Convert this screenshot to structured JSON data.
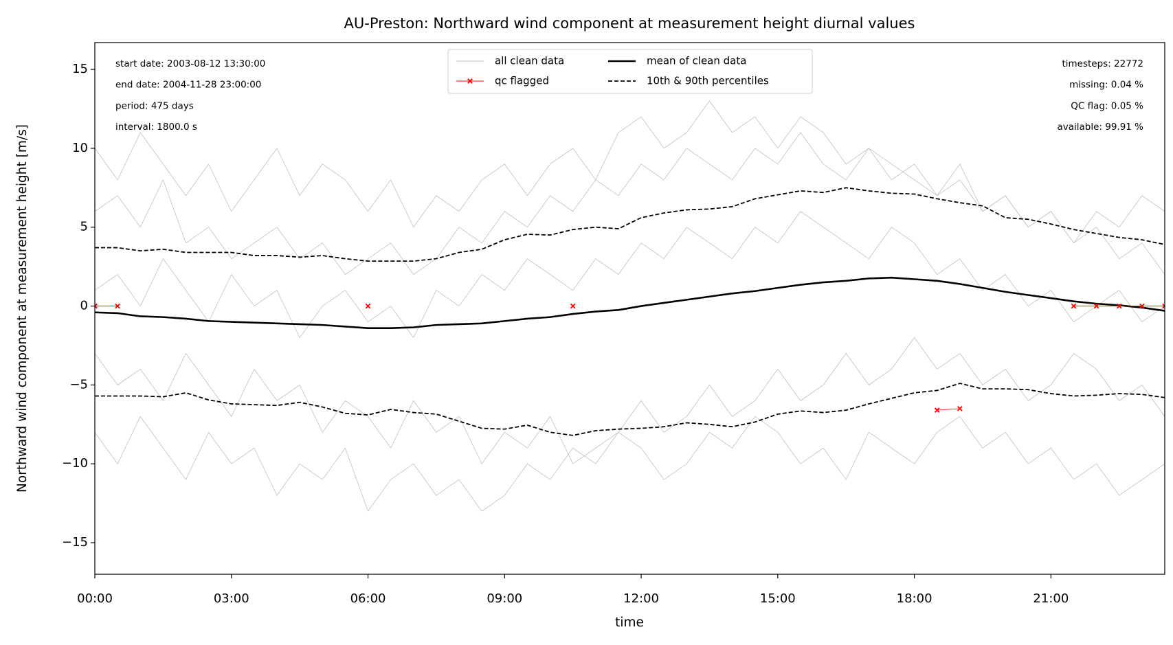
{
  "chart_data": {
    "type": "line",
    "title": "AU-Preston: Northward wind component at measurement height diurnal values",
    "xlabel": "time",
    "ylabel": "Northward wind component at measurement height [m/s]",
    "x": [
      0,
      0.5,
      1,
      1.5,
      2,
      2.5,
      3,
      3.5,
      4,
      4.5,
      5,
      5.5,
      6,
      6.5,
      7,
      7.5,
      8,
      8.5,
      9,
      9.5,
      10,
      10.5,
      11,
      11.5,
      12,
      12.5,
      13,
      13.5,
      14,
      14.5,
      15,
      15.5,
      16,
      16.5,
      17,
      17.5,
      18,
      18.5,
      19,
      19.5,
      20,
      20.5,
      21,
      21.5,
      22,
      22.5,
      23,
      23.5
    ],
    "xlim": [
      0,
      23.5
    ],
    "xticks": [
      {
        "value": 0,
        "label": "00:00"
      },
      {
        "value": 3,
        "label": "03:00"
      },
      {
        "value": 6,
        "label": "06:00"
      },
      {
        "value": 9,
        "label": "09:00"
      },
      {
        "value": 12,
        "label": "12:00"
      },
      {
        "value": 15,
        "label": "15:00"
      },
      {
        "value": 18,
        "label": "18:00"
      },
      {
        "value": 21,
        "label": "21:00"
      }
    ],
    "ylim": [
      -17,
      16.7
    ],
    "yticks": [
      {
        "value": -15,
        "label": "−15"
      },
      {
        "value": -10,
        "label": "−10"
      },
      {
        "value": -5,
        "label": "−5"
      },
      0,
      5,
      10,
      15
    ],
    "clean_data": {
      "name": "all clean data",
      "color": "#c0c0c0",
      "values": [
        [
          6,
          7,
          5,
          8,
          4,
          5,
          3,
          4,
          5,
          3,
          4,
          2,
          3,
          4,
          2,
          3,
          5,
          4,
          6,
          5,
          7,
          6,
          8,
          7,
          9,
          8,
          10,
          9,
          8,
          10,
          9,
          11,
          9,
          8,
          10,
          9,
          8,
          7,
          9,
          6,
          7,
          5,
          6,
          4,
          5,
          3,
          4,
          2
        ],
        [
          -3,
          -5,
          -4,
          -6,
          -3,
          -5,
          -7,
          -4,
          -6,
          -5,
          -8,
          -6,
          -7,
          -9,
          -6,
          -8,
          -7,
          -10,
          -8,
          -9,
          -7,
          -10,
          -9,
          -8,
          -6,
          -8,
          -7,
          -5,
          -7,
          -6,
          -4,
          -6,
          -5,
          -3,
          -5,
          -4,
          -2,
          -4,
          -3,
          -5,
          -4,
          -6,
          -5,
          -3,
          -4,
          -6,
          -5,
          -7
        ],
        [
          1,
          2,
          0,
          3,
          1,
          -1,
          2,
          0,
          1,
          -2,
          0,
          1,
          -1,
          0,
          -2,
          1,
          0,
          2,
          1,
          3,
          2,
          1,
          3,
          2,
          4,
          3,
          5,
          4,
          3,
          5,
          4,
          6,
          5,
          4,
          3,
          5,
          4,
          2,
          3,
          1,
          2,
          0,
          1,
          -1,
          0,
          1,
          -1,
          0
        ],
        [
          -8,
          -10,
          -7,
          -9,
          -11,
          -8,
          -10,
          -9,
          -12,
          -10,
          -11,
          -9,
          -13,
          -11,
          -10,
          -12,
          -11,
          -13,
          -12,
          -10,
          -11,
          -9,
          -10,
          -8,
          -9,
          -11,
          -10,
          -8,
          -9,
          -7,
          -8,
          -10,
          -9,
          -11,
          -8,
          -9,
          -10,
          -8,
          -7,
          -9,
          -8,
          -10,
          -9,
          -11,
          -10,
          -12,
          -11,
          -10
        ],
        [
          10,
          8,
          11,
          9,
          7,
          9,
          6,
          8,
          10,
          7,
          9,
          8,
          6,
          8,
          5,
          7,
          6,
          8,
          9,
          7,
          9,
          10,
          8,
          11,
          12,
          10,
          11,
          13,
          11,
          12,
          10,
          12,
          11,
          9,
          10,
          8,
          9,
          7,
          8,
          6,
          7,
          5,
          6,
          4,
          6,
          5,
          7,
          6
        ]
      ]
    },
    "qc": {
      "name": "qc flagged",
      "color": "#ff0000",
      "values": [
        0,
        0,
        null,
        null,
        null,
        null,
        null,
        null,
        null,
        null,
        null,
        null,
        0,
        null,
        null,
        null,
        null,
        null,
        null,
        null,
        null,
        0,
        null,
        null,
        null,
        null,
        null,
        null,
        null,
        null,
        null,
        null,
        null,
        null,
        null,
        null,
        null,
        -6.6,
        -6.5,
        null,
        null,
        null,
        null,
        0,
        0,
        0,
        0,
        0
      ]
    },
    "mean": {
      "name": "mean of clean data",
      "color": "#000000",
      "values": [
        -0.4,
        -0.45,
        -0.65,
        -0.7,
        -0.8,
        -0.95,
        -1.0,
        -1.05,
        -1.1,
        -1.15,
        -1.2,
        -1.3,
        -1.4,
        -1.4,
        -1.35,
        -1.2,
        -1.15,
        -1.1,
        -0.95,
        -0.8,
        -0.7,
        -0.5,
        -0.35,
        -0.25,
        0.0,
        0.2,
        0.4,
        0.6,
        0.8,
        0.95,
        1.15,
        1.35,
        1.5,
        1.6,
        1.75,
        1.8,
        1.7,
        1.6,
        1.4,
        1.15,
        0.9,
        0.7,
        0.5,
        0.3,
        0.15,
        0.05,
        -0.1,
        -0.3
      ]
    },
    "percentiles": {
      "name": "10th & 90th percentiles",
      "color": "#000000",
      "p90": [
        3.7,
        3.7,
        3.5,
        3.6,
        3.4,
        3.4,
        3.4,
        3.2,
        3.2,
        3.1,
        3.2,
        3.0,
        2.85,
        2.85,
        2.85,
        3.0,
        3.4,
        3.6,
        4.2,
        4.55,
        4.5,
        4.85,
        5.0,
        4.9,
        5.6,
        5.9,
        6.1,
        6.15,
        6.3,
        6.8,
        7.05,
        7.3,
        7.2,
        7.5,
        7.3,
        7.15,
        7.1,
        6.8,
        6.55,
        6.35,
        5.6,
        5.5,
        5.2,
        4.85,
        4.6,
        4.35,
        4.2,
        3.9
      ],
      "p10": [
        -5.7,
        -5.7,
        -5.7,
        -5.75,
        -5.5,
        -5.95,
        -6.2,
        -6.25,
        -6.3,
        -6.1,
        -6.4,
        -6.8,
        -6.9,
        -6.55,
        -6.75,
        -6.85,
        -7.3,
        -7.75,
        -7.8,
        -7.55,
        -8.0,
        -8.2,
        -7.9,
        -7.8,
        -7.75,
        -7.65,
        -7.4,
        -7.5,
        -7.65,
        -7.35,
        -6.85,
        -6.65,
        -6.75,
        -6.6,
        -6.2,
        -5.85,
        -5.5,
        -5.35,
        -4.9,
        -5.25,
        -5.25,
        -5.3,
        -5.55,
        -5.7,
        -5.65,
        -5.55,
        -5.6,
        -5.8
      ]
    },
    "annotations_left": [
      "start date: 2003-08-12 13:30:00",
      "end date: 2004-11-28 23:00:00",
      "period: 475 days",
      "interval: 1800.0 s"
    ],
    "annotations_right": [
      "timesteps: 22772",
      "missing: 0.04 %",
      "QC flag: 0.05 %",
      "available: 99.91 %"
    ]
  }
}
